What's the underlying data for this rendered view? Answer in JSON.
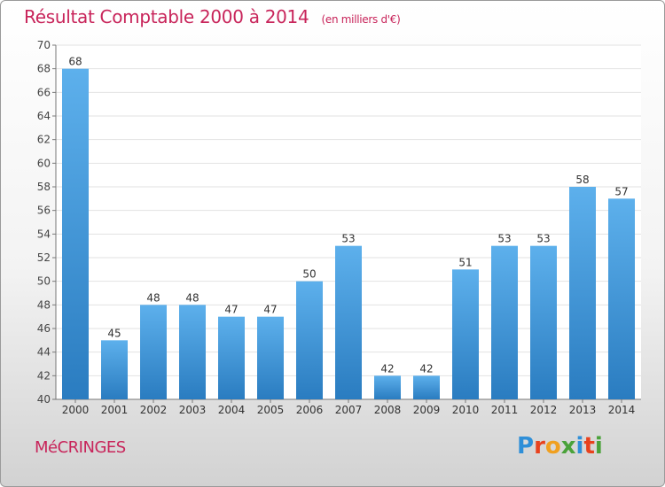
{
  "header": {
    "title": "Résultat Comptable 2000 à 2014",
    "unit": "(en milliers d'€)"
  },
  "footer": {
    "commune": "MéCRINGES",
    "logo_letters": [
      "P",
      "r",
      "o",
      "x",
      "i",
      "t",
      "i"
    ],
    "logo_colors": [
      "#2f8fd8",
      "#e8421e",
      "#f0a020",
      "#4aa23a",
      "#2f8fd8",
      "#e8421e",
      "#4aa23a"
    ]
  },
  "colors": {
    "bar_light": "#5db0ec",
    "bar_dark": "#2a7cc0",
    "title": "#c8245a",
    "grid": "#e2e2e2"
  },
  "chart_data": {
    "type": "bar",
    "title": "Résultat Comptable 2000 à 2014",
    "subtitle": "(en milliers d'€)",
    "categories": [
      "2000",
      "2001",
      "2002",
      "2003",
      "2004",
      "2005",
      "2006",
      "2007",
      "2008",
      "2009",
      "2010",
      "2011",
      "2012",
      "2013",
      "2014"
    ],
    "values": [
      68,
      45,
      48,
      48,
      47,
      47,
      50,
      53,
      42,
      42,
      51,
      53,
      53,
      58,
      57
    ],
    "data_labels": [
      "68",
      "45",
      "48",
      "48",
      "47",
      "47",
      "50",
      "53",
      "42",
      "42",
      "51",
      "53",
      "53",
      "58",
      "57"
    ],
    "ylim": [
      40,
      70
    ],
    "yticks": [
      40,
      42,
      44,
      46,
      48,
      50,
      52,
      54,
      56,
      58,
      60,
      62,
      64,
      66,
      68,
      70
    ],
    "xlabel": "",
    "ylabel": "",
    "grid": true
  }
}
